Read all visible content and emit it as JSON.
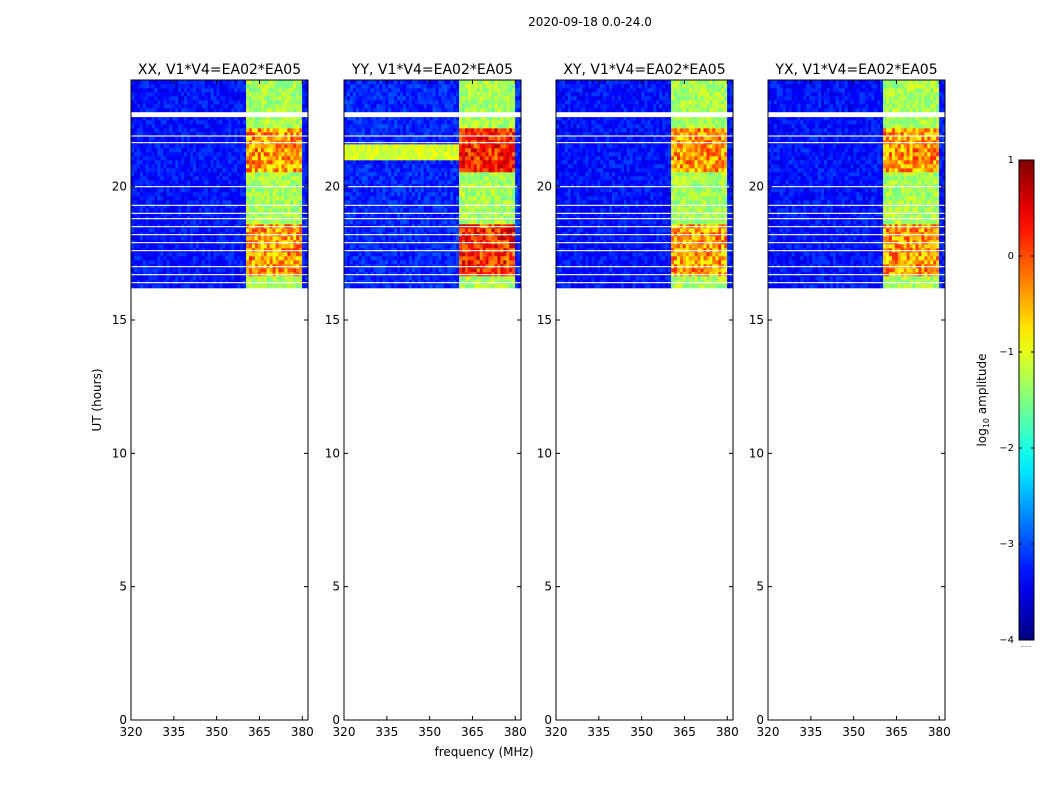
{
  "figure_title": "2020-09-18 0.0-24.0",
  "colors": {
    "colormap": "jet",
    "background": "#ffffff",
    "axis": "#000000"
  },
  "chart_data": {
    "type": "heatmap",
    "suptitle": "2020-09-18 0.0-24.0",
    "shared": {
      "xlabel": "frequency (MHz)",
      "ylabel": "UT (hours)",
      "xlim": [
        320,
        382
      ],
      "ylim": [
        0,
        24
      ],
      "xticks": [
        320,
        335,
        350,
        365,
        380
      ],
      "yticks": [
        0,
        5,
        10,
        15,
        20
      ],
      "data_time_range": [
        16.2,
        24.0
      ],
      "strong_channel_bands_mhz": [
        [
          360.5,
          365
        ],
        [
          365.5,
          369.5
        ],
        [
          370,
          374.5
        ],
        [
          375,
          379.5
        ]
      ],
      "gap_rows_hours": [
        22.65,
        22.7,
        22.75,
        21.9,
        21.65,
        20.0,
        19.3,
        19.0,
        18.8,
        18.5,
        18.2,
        17.9,
        17.6,
        17.0,
        16.7,
        16.4
      ],
      "panel_intensity": {
        "XX": {
          "hot_band_max": 0.2,
          "bg_level": -3.3
        },
        "YY": {
          "hot_band_max": 0.8,
          "bg_level": -3.2
        },
        "XY": {
          "hot_band_max": 0.2,
          "bg_level": -3.3
        },
        "YX": {
          "hot_band_max": 0.2,
          "bg_level": -3.3
        }
      }
    },
    "panels": [
      {
        "title": "XX, V1*V4=EA02*EA05",
        "pol": "XX"
      },
      {
        "title": "YY, V1*V4=EA02*EA05",
        "pol": "YY"
      },
      {
        "title": "XY, V1*V4=EA02*EA05",
        "pol": "XY"
      },
      {
        "title": "YX, V1*V4=EA02*EA05",
        "pol": "YX"
      }
    ],
    "colorbar": {
      "label_prefix": "log",
      "label_sub": "10",
      "label_suffix": " amplitude",
      "min": -4,
      "max": 1,
      "ticks": [
        1,
        0,
        -1,
        -2,
        -3,
        -4
      ],
      "tick_labels": [
        "1",
        "0",
        "−1",
        "−2",
        "−3",
        "−4"
      ],
      "overflow_marker": "......"
    }
  }
}
